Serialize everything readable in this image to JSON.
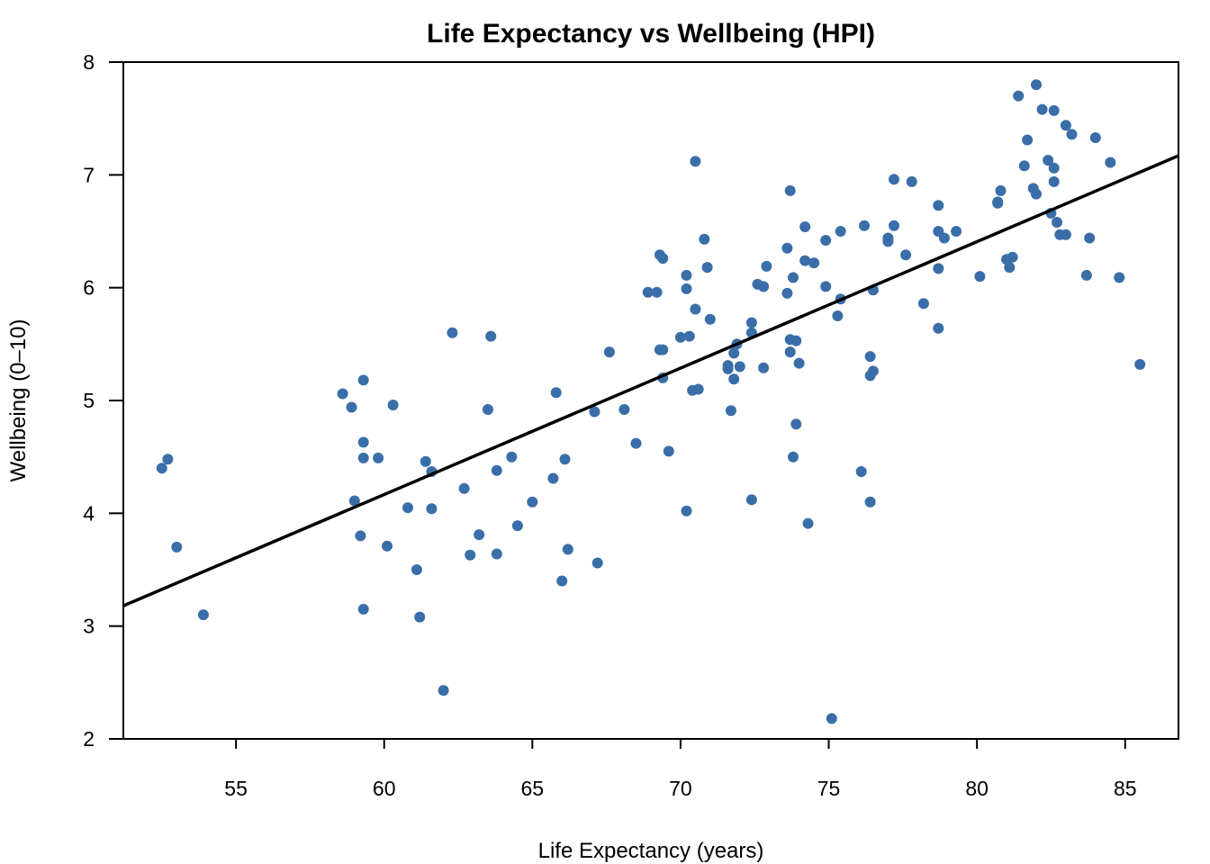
{
  "chart_data": {
    "type": "scatter",
    "title": "Life Expectancy vs Wellbeing (HPI)",
    "xlabel": "Life Expectancy (years)",
    "ylabel": "Wellbeing (0–10)",
    "xlim": [
      51.2,
      86.8
    ],
    "ylim": [
      2.0,
      8.0
    ],
    "xticks": [
      55,
      60,
      65,
      70,
      75,
      80,
      85
    ],
    "yticks": [
      2,
      3,
      4,
      5,
      6,
      7,
      8
    ],
    "point_color": "#3a6ea8",
    "line_color": "#000000",
    "regression_line": {
      "x": [
        51.2,
        86.8
      ],
      "y": [
        3.18,
        7.17
      ]
    },
    "points": [
      [
        52.5,
        4.4
      ],
      [
        52.7,
        4.48
      ],
      [
        53.0,
        3.7
      ],
      [
        53.9,
        3.1
      ],
      [
        58.6,
        5.06
      ],
      [
        58.9,
        4.94
      ],
      [
        59.0,
        4.11
      ],
      [
        59.2,
        3.8
      ],
      [
        59.3,
        4.63
      ],
      [
        59.3,
        4.49
      ],
      [
        59.3,
        3.15
      ],
      [
        59.3,
        5.18
      ],
      [
        59.8,
        4.49
      ],
      [
        60.1,
        3.71
      ],
      [
        60.3,
        4.96
      ],
      [
        60.8,
        4.05
      ],
      [
        61.1,
        3.5
      ],
      [
        61.2,
        3.08
      ],
      [
        61.4,
        4.46
      ],
      [
        61.6,
        4.37
      ],
      [
        61.6,
        4.04
      ],
      [
        62.0,
        2.43
      ],
      [
        62.3,
        5.6
      ],
      [
        62.7,
        4.22
      ],
      [
        62.9,
        3.63
      ],
      [
        63.2,
        3.81
      ],
      [
        63.5,
        4.92
      ],
      [
        63.6,
        5.57
      ],
      [
        63.8,
        4.38
      ],
      [
        63.8,
        3.64
      ],
      [
        64.3,
        4.5
      ],
      [
        64.5,
        3.89
      ],
      [
        65.0,
        4.1
      ],
      [
        65.7,
        4.31
      ],
      [
        65.8,
        5.07
      ],
      [
        66.0,
        3.4
      ],
      [
        66.1,
        4.48
      ],
      [
        66.2,
        3.68
      ],
      [
        67.1,
        4.9
      ],
      [
        67.2,
        3.56
      ],
      [
        67.6,
        5.43
      ],
      [
        68.1,
        4.92
      ],
      [
        68.5,
        4.62
      ],
      [
        68.9,
        5.96
      ],
      [
        69.2,
        5.96
      ],
      [
        69.3,
        6.29
      ],
      [
        69.3,
        5.45
      ],
      [
        69.4,
        6.26
      ],
      [
        69.4,
        5.45
      ],
      [
        69.4,
        5.2
      ],
      [
        69.6,
        4.55
      ],
      [
        70.0,
        5.56
      ],
      [
        70.2,
        6.11
      ],
      [
        70.2,
        5.99
      ],
      [
        70.2,
        4.02
      ],
      [
        70.3,
        5.57
      ],
      [
        70.4,
        5.09
      ],
      [
        70.5,
        7.12
      ],
      [
        70.5,
        5.81
      ],
      [
        70.6,
        5.1
      ],
      [
        70.8,
        6.43
      ],
      [
        70.9,
        6.18
      ],
      [
        71.0,
        5.72
      ],
      [
        71.6,
        5.31
      ],
      [
        71.6,
        5.28
      ],
      [
        71.7,
        4.91
      ],
      [
        71.8,
        5.42
      ],
      [
        71.8,
        5.19
      ],
      [
        71.9,
        5.5
      ],
      [
        72.0,
        5.3
      ],
      [
        72.4,
        5.69
      ],
      [
        72.4,
        4.12
      ],
      [
        72.4,
        5.6
      ],
      [
        72.6,
        6.03
      ],
      [
        72.8,
        6.01
      ],
      [
        72.8,
        5.29
      ],
      [
        72.9,
        6.19
      ],
      [
        73.6,
        6.35
      ],
      [
        73.6,
        5.95
      ],
      [
        73.7,
        5.54
      ],
      [
        73.7,
        5.43
      ],
      [
        73.7,
        6.86
      ],
      [
        73.8,
        4.5
      ],
      [
        73.8,
        6.09
      ],
      [
        73.9,
        5.53
      ],
      [
        73.9,
        4.79
      ],
      [
        74.0,
        5.33
      ],
      [
        74.2,
        6.54
      ],
      [
        74.2,
        6.24
      ],
      [
        74.3,
        3.91
      ],
      [
        74.5,
        6.22
      ],
      [
        74.9,
        6.42
      ],
      [
        74.9,
        6.01
      ],
      [
        75.1,
        2.18
      ],
      [
        75.3,
        5.75
      ],
      [
        75.4,
        5.9
      ],
      [
        75.4,
        6.5
      ],
      [
        76.1,
        4.37
      ],
      [
        76.2,
        6.55
      ],
      [
        76.4,
        5.39
      ],
      [
        76.4,
        5.22
      ],
      [
        76.4,
        4.1
      ],
      [
        76.5,
        5.98
      ],
      [
        76.5,
        5.26
      ],
      [
        77.0,
        6.44
      ],
      [
        77.0,
        6.41
      ],
      [
        77.2,
        6.96
      ],
      [
        77.2,
        6.55
      ],
      [
        77.6,
        6.29
      ],
      [
        77.8,
        6.94
      ],
      [
        78.2,
        5.86
      ],
      [
        78.7,
        6.73
      ],
      [
        78.7,
        6.17
      ],
      [
        78.7,
        5.64
      ],
      [
        78.7,
        6.5
      ],
      [
        78.9,
        6.44
      ],
      [
        79.3,
        6.5
      ],
      [
        80.1,
        6.1
      ],
      [
        80.7,
        6.76
      ],
      [
        80.7,
        6.75
      ],
      [
        80.8,
        6.86
      ],
      [
        81.0,
        6.25
      ],
      [
        81.1,
        6.18
      ],
      [
        81.2,
        6.27
      ],
      [
        81.4,
        7.7
      ],
      [
        81.6,
        7.08
      ],
      [
        81.7,
        7.31
      ],
      [
        81.9,
        6.88
      ],
      [
        82.0,
        6.83
      ],
      [
        82.0,
        7.8
      ],
      [
        82.2,
        7.58
      ],
      [
        82.4,
        7.13
      ],
      [
        82.5,
        6.66
      ],
      [
        82.6,
        7.06
      ],
      [
        82.6,
        6.94
      ],
      [
        82.6,
        7.57
      ],
      [
        82.7,
        6.58
      ],
      [
        82.8,
        6.47
      ],
      [
        83.0,
        6.47
      ],
      [
        83.0,
        7.44
      ],
      [
        83.2,
        7.36
      ],
      [
        83.7,
        6.11
      ],
      [
        83.8,
        6.44
      ],
      [
        84.0,
        7.33
      ],
      [
        84.5,
        7.11
      ],
      [
        84.8,
        6.09
      ],
      [
        85.5,
        5.32
      ]
    ]
  }
}
